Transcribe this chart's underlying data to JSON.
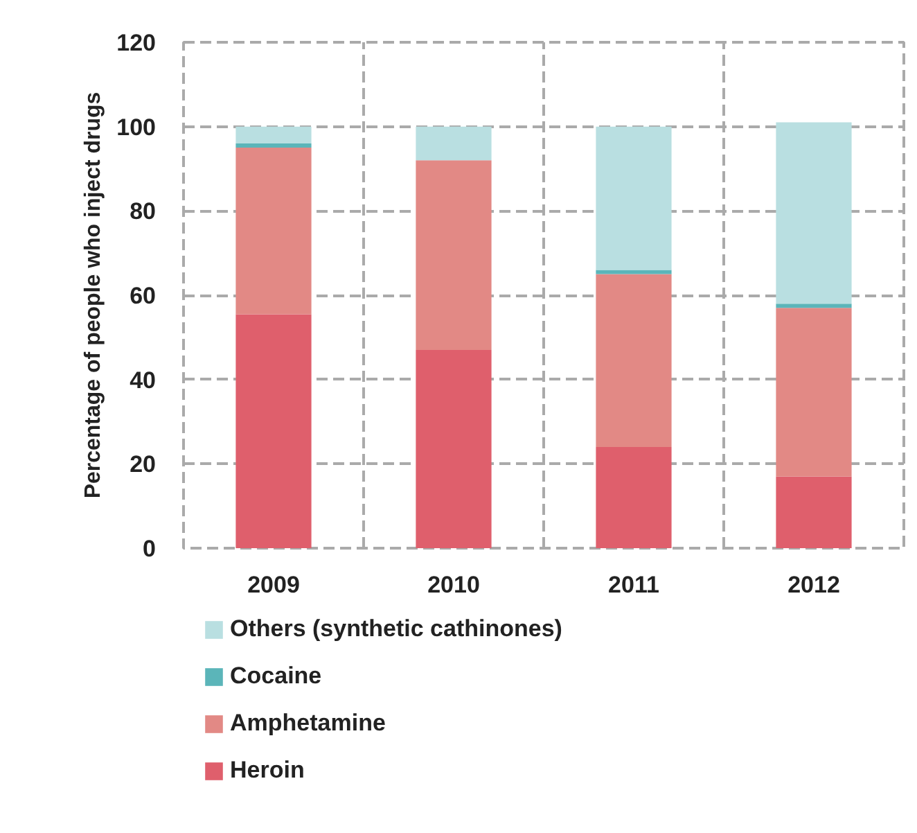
{
  "chart_data": {
    "type": "bar",
    "stacked": true,
    "ylabel": "Percentage of people who inject drugs",
    "categories": [
      "2009",
      "2010",
      "2011",
      "2012"
    ],
    "series": [
      {
        "name": "Heroin",
        "color": "#df5f6c",
        "values": [
          55.5,
          47,
          24,
          17
        ]
      },
      {
        "name": "Amphetamine",
        "color": "#e28985",
        "values": [
          39.5,
          45,
          41,
          40
        ]
      },
      {
        "name": "Cocaine",
        "color": "#5bb5b9",
        "values": [
          1,
          null,
          1,
          1
        ]
      },
      {
        "name": "Others (synthetic cathinones)",
        "color": "#b9dfe1",
        "values": [
          4,
          8,
          34,
          43
        ]
      }
    ],
    "ylim": [
      0,
      120
    ],
    "yticks": [
      0,
      20,
      40,
      60,
      80,
      100,
      120
    ],
    "grid": true,
    "legend": "bottom"
  }
}
